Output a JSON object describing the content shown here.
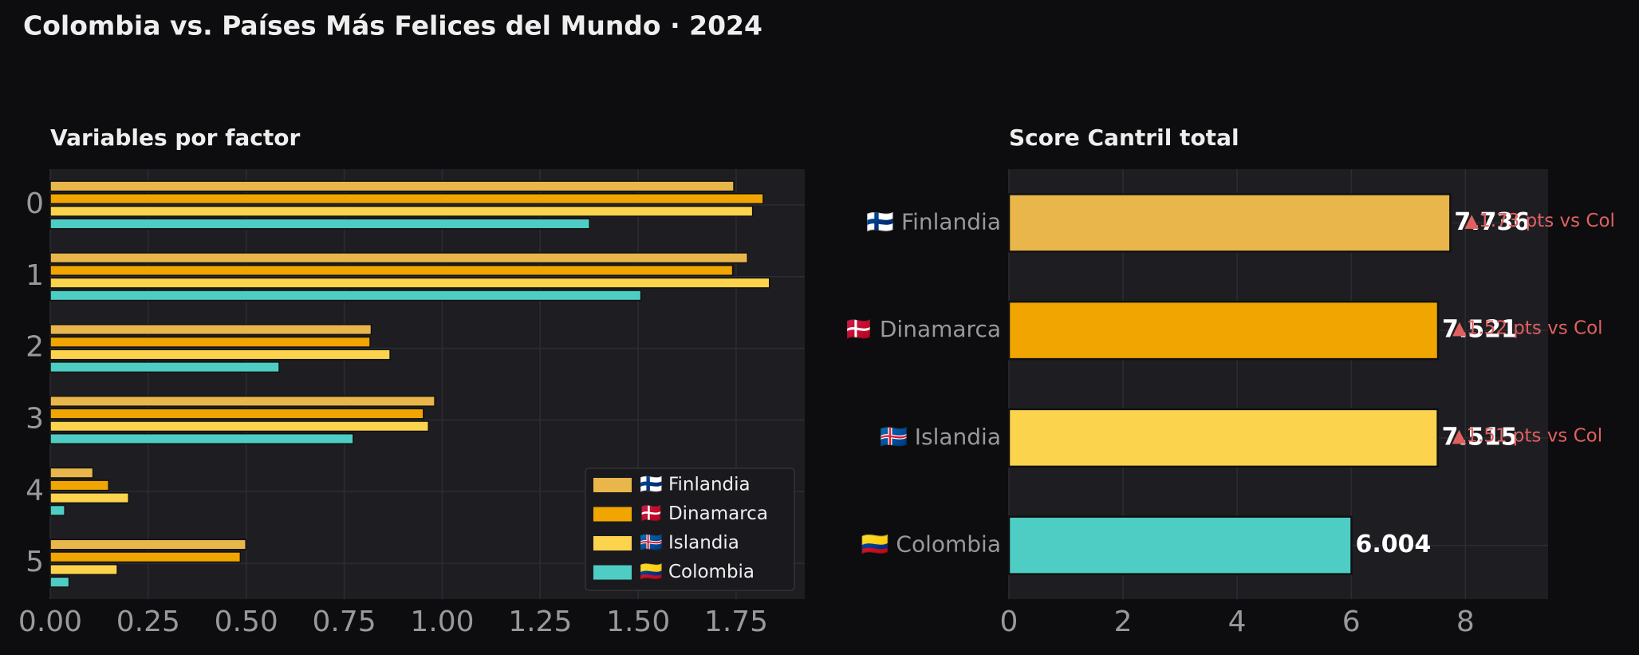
{
  "title": "Colombia vs. Países Más Felices del Mundo · 2024",
  "chart_data": [
    {
      "type": "barh-grouped",
      "title": "Variables por factor",
      "categories": [
        "0",
        "1",
        "2",
        "3",
        "4",
        "5"
      ],
      "series": [
        {
          "name": "🇫🇮 Finlandia",
          "color": "#e8b64a",
          "values": [
            1.744,
            1.779,
            0.819,
            0.981,
            0.109,
            0.499
          ]
        },
        {
          "name": "🇩🇰 Dinamarca",
          "color": "#f0a500",
          "values": [
            1.819,
            1.741,
            0.816,
            0.952,
            0.149,
            0.485
          ]
        },
        {
          "name": "🇮🇸 Islandia",
          "color": "#fcd34d",
          "values": [
            1.792,
            1.835,
            0.867,
            0.965,
            0.2,
            0.171
          ]
        },
        {
          "name": "🇨🇴 Colombia",
          "color": "#4ecdc4",
          "values": [
            1.376,
            1.507,
            0.584,
            0.773,
            0.037,
            0.048
          ]
        }
      ],
      "xlim": [
        0,
        1.925
      ],
      "xticks": [
        {
          "value": 0,
          "label": "0.00"
        },
        {
          "value": 0.25,
          "label": "0.25"
        },
        {
          "value": 0.5,
          "label": "0.50"
        },
        {
          "value": 0.75,
          "label": "0.75"
        },
        {
          "value": 1,
          "label": "1.00"
        },
        {
          "value": 1.25,
          "label": "1.25"
        },
        {
          "value": 1.5,
          "label": "1.50"
        },
        {
          "value": 1.75,
          "label": "1.75"
        }
      ],
      "grid": true,
      "legend": "lower right"
    },
    {
      "type": "barh",
      "title": "Score Cantril total",
      "categories": [
        "🇫🇮 Finlandia",
        "🇩🇰 Dinamarca",
        "🇮🇸 Islandia",
        "🇨🇴 Colombia"
      ],
      "values": [
        7.736,
        7.521,
        7.515,
        6.004
      ],
      "colors": [
        "#e8b64a",
        "#f0a500",
        "#fcd34d",
        "#4ecdc4"
      ],
      "annotations": [
        "▲1.73 pts vs Col",
        "▲1.52 pts vs Col",
        "▲1.51 pts vs Col",
        null
      ],
      "xlim": [
        0,
        9.45
      ],
      "xticks": [
        0,
        2,
        4,
        6,
        8
      ],
      "grid": true
    }
  ]
}
